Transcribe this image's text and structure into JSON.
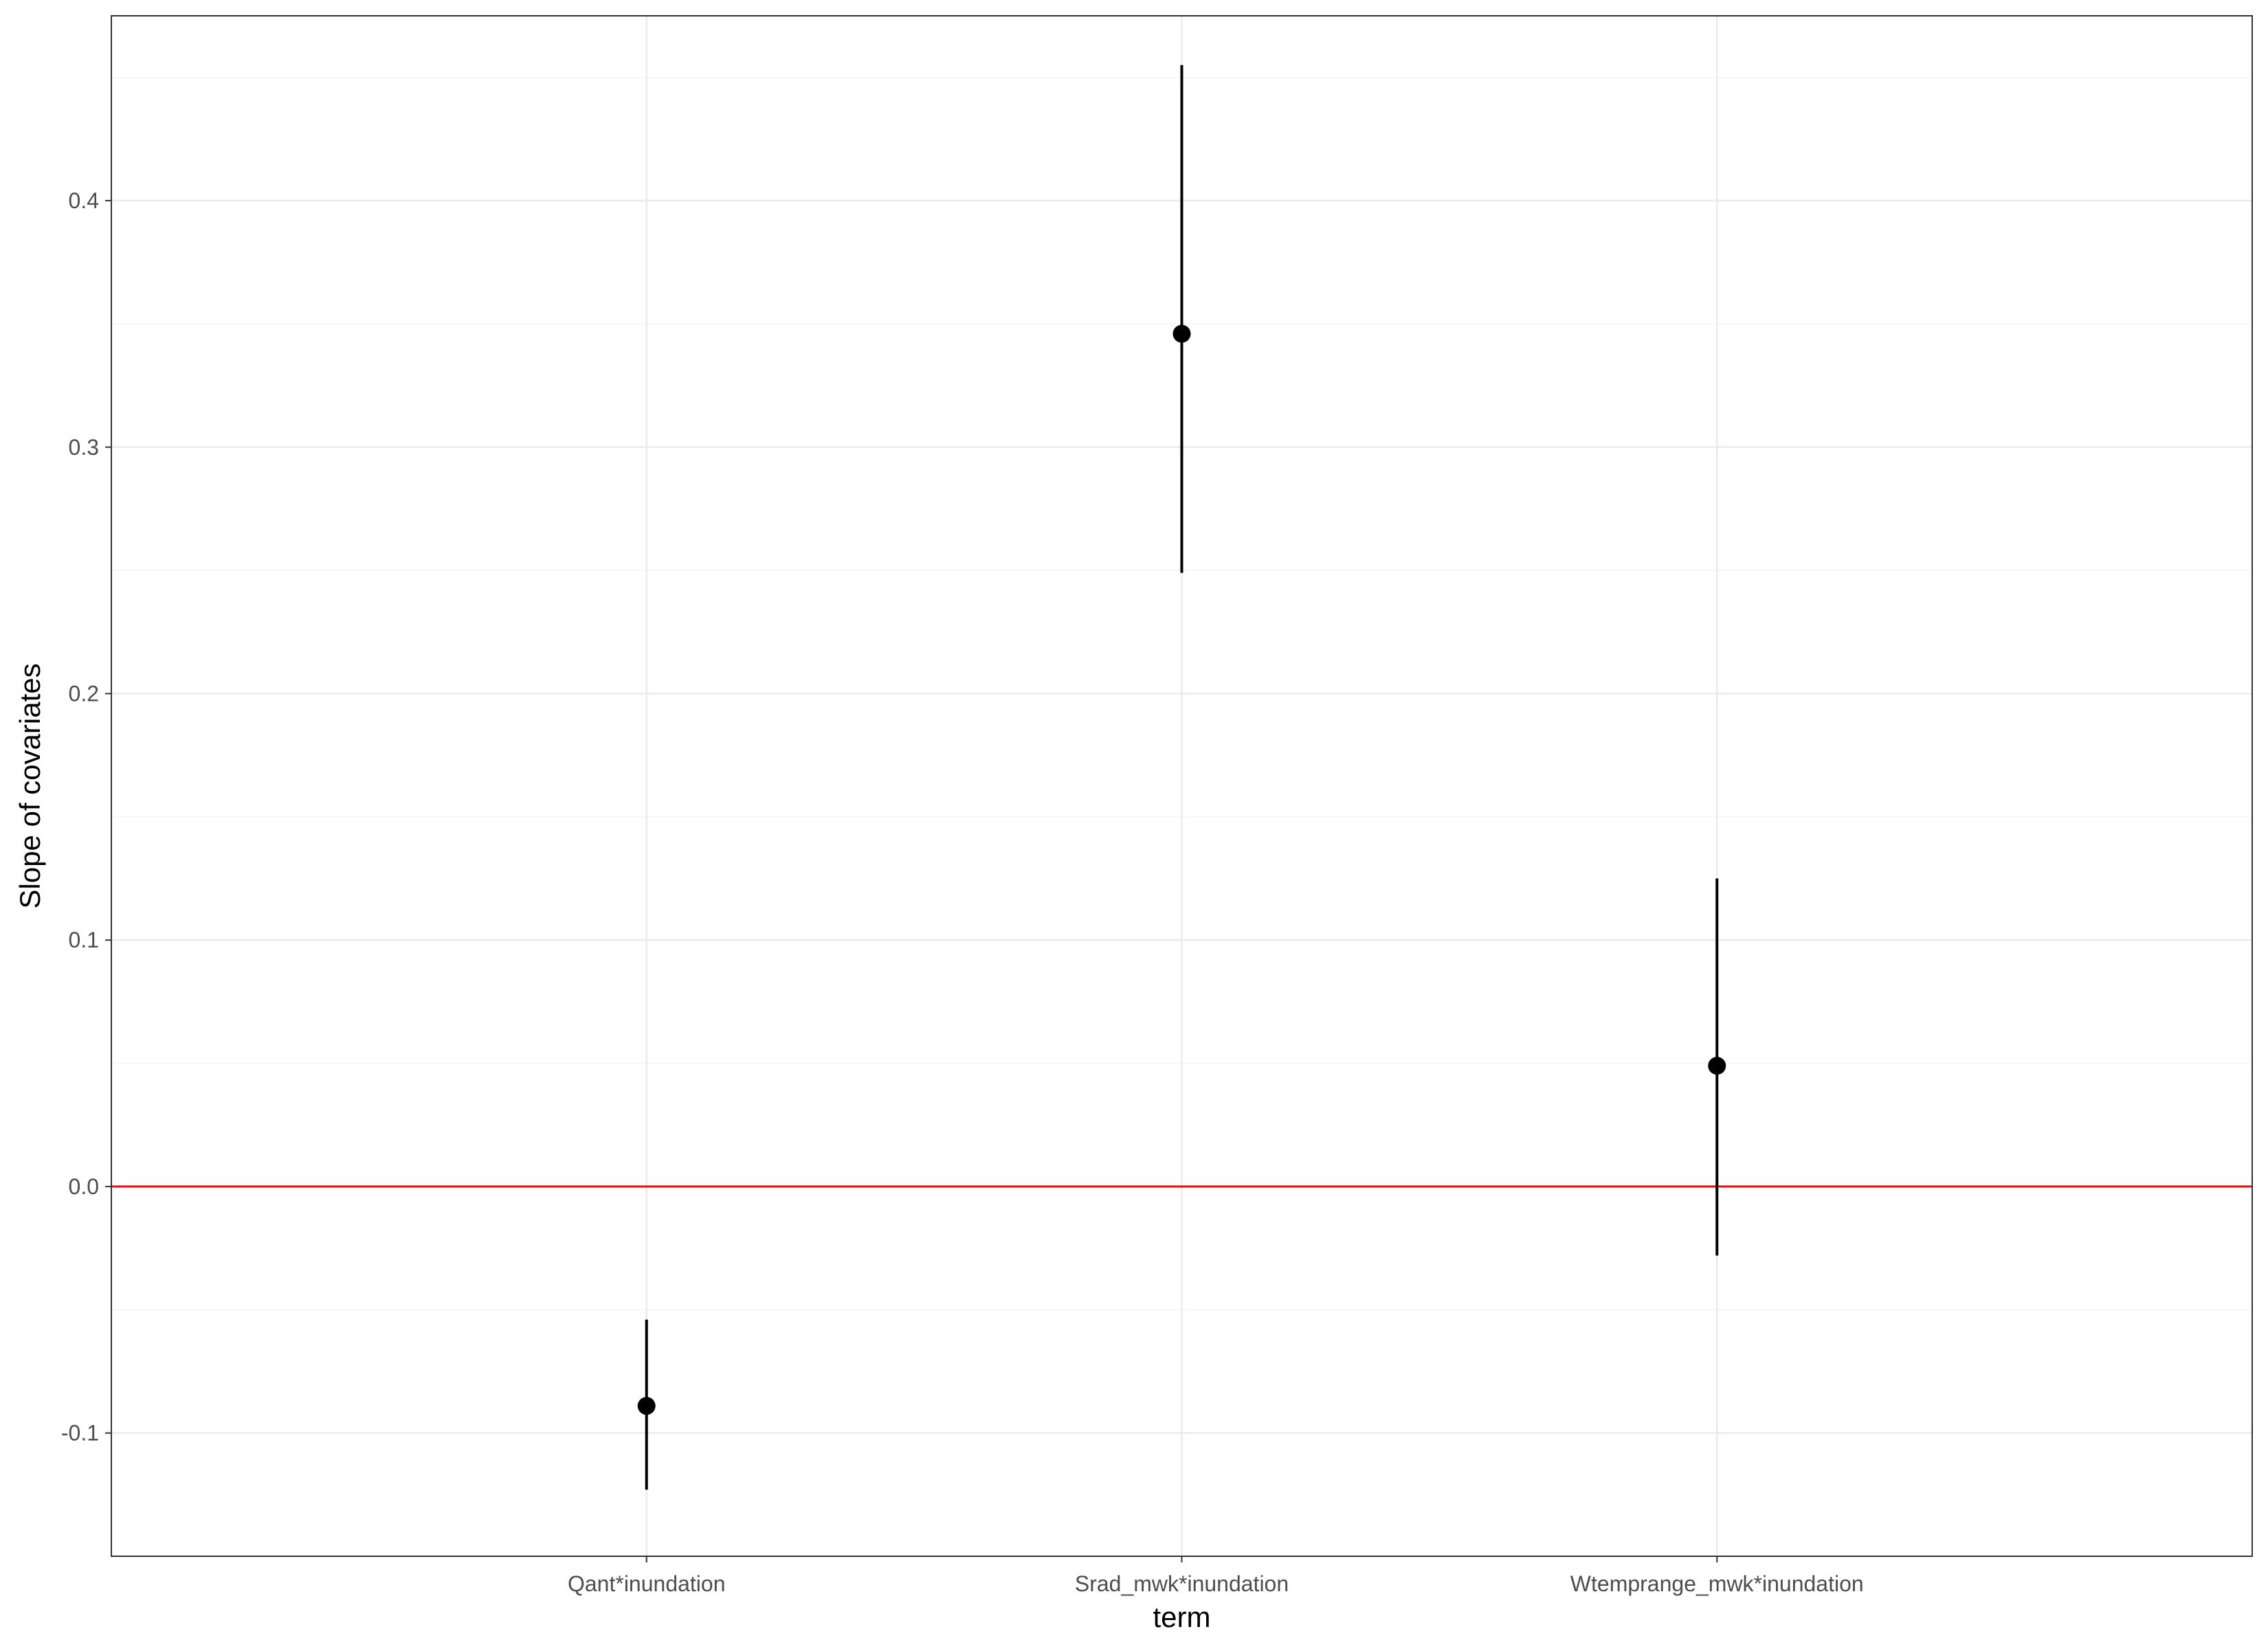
{
  "chart_data": {
    "type": "scatter",
    "subtype": "pointrange",
    "title": "",
    "xlabel": "term",
    "ylabel": "Slope of covariates",
    "categories": [
      "Qant*inundation",
      "Srad_mwk*inundation",
      "Wtemprange_mwk*inundation"
    ],
    "estimates": [
      -0.089,
      0.346,
      0.049
    ],
    "lower": [
      -0.123,
      0.249,
      -0.028
    ],
    "upper": [
      -0.054,
      0.455,
      0.125
    ],
    "ylim": [
      -0.15,
      0.475
    ],
    "yticks": [
      -0.1,
      0.0,
      0.1,
      0.2,
      0.3,
      0.4
    ],
    "ytick_labels": [
      "-0.1",
      "0.0",
      "0.1",
      "0.2",
      "0.3",
      "0.4"
    ],
    "reference_line": {
      "y": 0.0,
      "color": "#ff0000"
    },
    "grid": true,
    "theme": "bw",
    "colors": {
      "panel_border": "#333333",
      "grid_major": "#ebebeb",
      "grid_minor": "#f5f5f5",
      "point": "#000000",
      "tick_text": "#4d4d4d",
      "reference_line": "#ff0000"
    }
  }
}
